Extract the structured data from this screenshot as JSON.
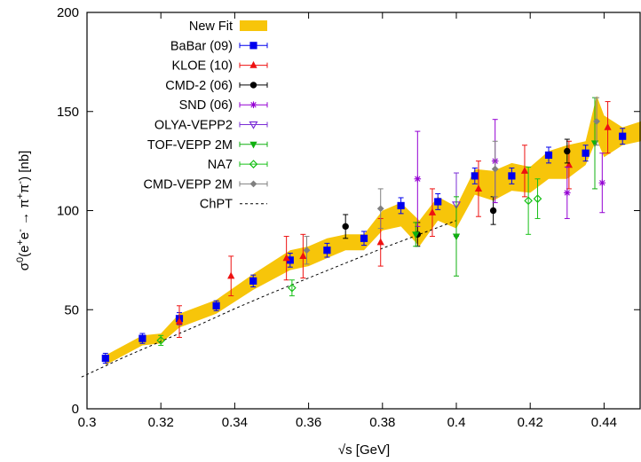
{
  "chart_data": {
    "type": "scatter",
    "xlabel": "√s [GeV]",
    "ylabel_parts": {
      "sigma": "σ",
      "zero": "0",
      "open": "(e",
      "plus1": "+",
      "e2": "e",
      "minus1": "-",
      "arrow": " → π",
      "plus2": "+",
      "pi2": "π",
      "minus2": "-",
      "close": ") [nb]"
    },
    "xlim": [
      0.3,
      0.45
    ],
    "ylim": [
      0,
      200
    ],
    "x_ticks": [
      {
        "value": 0.3,
        "label": "0.3"
      },
      {
        "value": 0.32,
        "label": "0.32"
      },
      {
        "value": 0.34,
        "label": "0.34"
      },
      {
        "value": 0.36,
        "label": "0.36"
      },
      {
        "value": 0.38,
        "label": "0.38"
      },
      {
        "value": 0.4,
        "label": "0.4"
      },
      {
        "value": 0.42,
        "label": "0.42"
      },
      {
        "value": 0.44,
        "label": "0.44"
      }
    ],
    "y_ticks": [
      {
        "value": 0,
        "label": "0"
      },
      {
        "value": 50,
        "label": "50"
      },
      {
        "value": 100,
        "label": "100"
      },
      {
        "value": 150,
        "label": "150"
      },
      {
        "value": 200,
        "label": "200"
      }
    ],
    "grid": false,
    "legend_position": "top-left",
    "band": {
      "name": "New Fit",
      "color": "#f7c50a",
      "x": [
        0.305,
        0.315,
        0.32,
        0.325,
        0.335,
        0.345,
        0.355,
        0.36,
        0.365,
        0.37,
        0.375,
        0.38,
        0.385,
        0.39,
        0.395,
        0.4,
        0.405,
        0.41,
        0.415,
        0.42,
        0.425,
        0.43,
        0.435,
        0.438,
        0.44,
        0.445,
        0.45
      ],
      "lower": [
        22,
        32,
        33,
        41,
        48,
        60,
        70,
        72,
        76,
        80,
        80,
        90,
        92,
        82,
        95,
        91,
        108,
        105,
        110,
        109,
        116,
        116,
        123,
        136,
        127,
        133,
        135
      ],
      "upper": [
        27,
        37,
        38,
        48,
        55,
        68,
        80,
        82,
        86,
        88,
        88,
        100,
        104,
        95,
        107,
        102,
        121,
        120,
        124,
        122,
        130,
        133,
        135,
        158,
        148,
        142,
        145
      ]
    },
    "series": [
      {
        "name": "BaBar (09)",
        "color": "#0000ee",
        "marker": "square",
        "points": [
          {
            "x": 0.305,
            "y": 25.5,
            "e": 2.5
          },
          {
            "x": 0.315,
            "y": 35.5,
            "e": 2.5
          },
          {
            "x": 0.325,
            "y": 45.5,
            "e": 3
          },
          {
            "x": 0.335,
            "y": 52,
            "e": 2.5
          },
          {
            "x": 0.345,
            "y": 64.5,
            "e": 3
          },
          {
            "x": 0.355,
            "y": 75,
            "e": 3.5
          },
          {
            "x": 0.365,
            "y": 80,
            "e": 3.5
          },
          {
            "x": 0.375,
            "y": 86,
            "e": 3.5
          },
          {
            "x": 0.385,
            "y": 102.5,
            "e": 4
          },
          {
            "x": 0.395,
            "y": 104.5,
            "e": 4
          },
          {
            "x": 0.405,
            "y": 117.5,
            "e": 4
          },
          {
            "x": 0.415,
            "y": 117.5,
            "e": 4
          },
          {
            "x": 0.425,
            "y": 128,
            "e": 4
          },
          {
            "x": 0.435,
            "y": 129,
            "e": 4
          },
          {
            "x": 0.445,
            "y": 137.5,
            "e": 4
          }
        ]
      },
      {
        "name": "KLOE (10)",
        "color": "#ee1111",
        "marker": "triangle",
        "points": [
          {
            "x": 0.325,
            "y": 44,
            "e": 8
          },
          {
            "x": 0.339,
            "y": 67,
            "e": 10
          },
          {
            "x": 0.354,
            "y": 76,
            "e": 11
          },
          {
            "x": 0.3585,
            "y": 77,
            "e": 11
          },
          {
            "x": 0.3795,
            "y": 84,
            "e": 12
          },
          {
            "x": 0.3935,
            "y": 99,
            "e": 12
          },
          {
            "x": 0.406,
            "y": 111,
            "e": 14
          },
          {
            "x": 0.4185,
            "y": 120,
            "e": 13
          },
          {
            "x": 0.4305,
            "y": 123,
            "e": 12
          },
          {
            "x": 0.441,
            "y": 142,
            "e": 13
          }
        ]
      },
      {
        "name": "CMD-2 (06)",
        "color": "#000000",
        "marker": "circle",
        "points": [
          {
            "x": 0.37,
            "y": 92,
            "e": 6
          },
          {
            "x": 0.3895,
            "y": 88,
            "e": 6
          },
          {
            "x": 0.41,
            "y": 100,
            "e": 7
          },
          {
            "x": 0.43,
            "y": 130,
            "e": 6
          }
        ]
      },
      {
        "name": "SND (06)",
        "color": "#9400d3",
        "marker": "star",
        "points": [
          {
            "x": 0.3895,
            "y": 116,
            "e": 24
          },
          {
            "x": 0.4105,
            "y": 125,
            "e": 21
          },
          {
            "x": 0.43,
            "y": 109,
            "e": 13
          },
          {
            "x": 0.4395,
            "y": 114,
            "e": 15
          }
        ]
      },
      {
        "name": "OLYA-VEPP2",
        "color": "#7b2fd6",
        "marker": "triangle-down",
        "points": [
          {
            "x": 0.4,
            "y": 103,
            "e": 16
          }
        ]
      },
      {
        "name": "TOF-VEPP 2M",
        "color": "#10b010",
        "marker": "triangle-down-filled",
        "points": [
          {
            "x": 0.389,
            "y": 88,
            "e": 6
          },
          {
            "x": 0.4,
            "y": 87,
            "e": 20
          },
          {
            "x": 0.4375,
            "y": 134,
            "e": 23
          }
        ]
      },
      {
        "name": "NA7",
        "color": "#18c018",
        "marker": "diamond",
        "points": [
          {
            "x": 0.32,
            "y": 34.5,
            "e": 2.5
          },
          {
            "x": 0.3555,
            "y": 61,
            "e": 4
          },
          {
            "x": 0.4195,
            "y": 105,
            "e": 17
          },
          {
            "x": 0.422,
            "y": 106,
            "e": 10
          }
        ]
      },
      {
        "name": "CMD-VEPP 2M",
        "color": "#808080",
        "marker": "diamond-filled",
        "points": [
          {
            "x": 0.3595,
            "y": 80,
            "e": 7
          },
          {
            "x": 0.3795,
            "y": 101,
            "e": 10
          },
          {
            "x": 0.4105,
            "y": 121,
            "e": 14
          },
          {
            "x": 0.438,
            "y": 145,
            "e": 12
          }
        ]
      }
    ],
    "chpt": {
      "name": "ChPT",
      "x": [
        0.2985,
        0.31,
        0.32,
        0.33,
        0.34,
        0.35,
        0.36,
        0.37,
        0.38,
        0.39,
        0.4
      ],
      "y": [
        16,
        26,
        34,
        42,
        50.5,
        58.5,
        66,
        73.5,
        81,
        88,
        95
      ]
    }
  }
}
